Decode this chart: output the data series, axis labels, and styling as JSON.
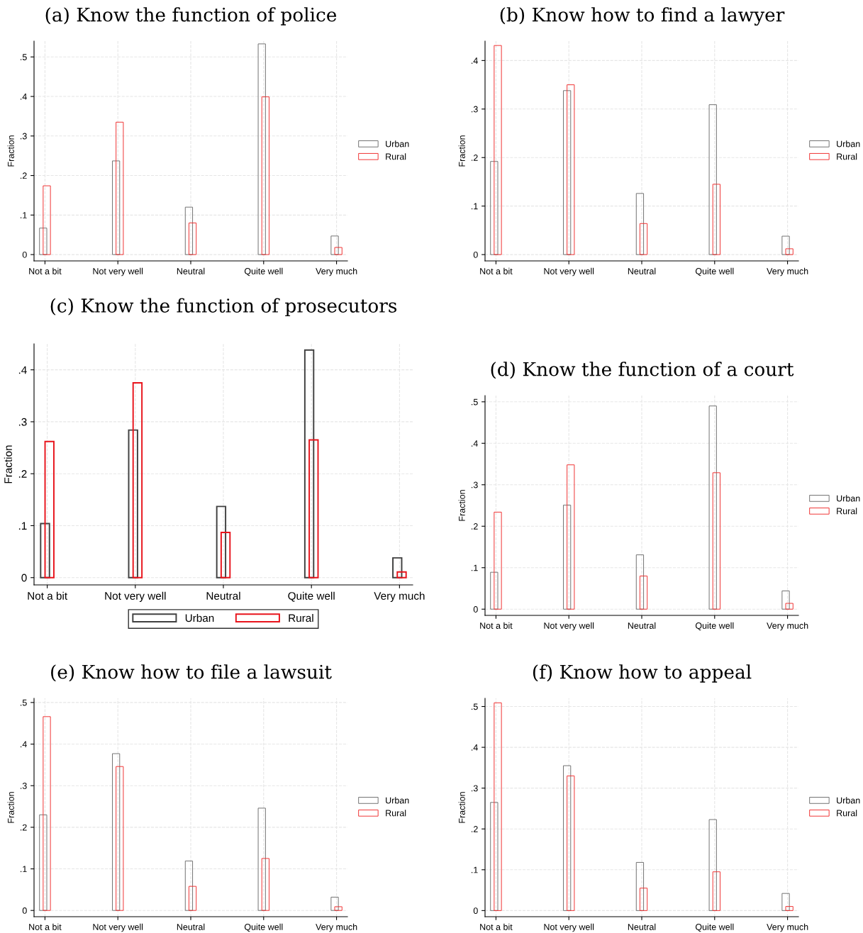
{
  "chart_data": [
    {
      "type": "bar",
      "title": "(a) Know the function of police",
      "ylabel": "Fraction",
      "categories": [
        "Not a bit",
        "Not very well",
        "Neutral",
        "Quite well",
        "Very much"
      ],
      "series": [
        {
          "name": "Urban",
          "color": "#707070",
          "values": [
            0.067,
            0.237,
            0.12,
            0.533,
            0.047
          ]
        },
        {
          "name": "Rural",
          "color": "#f03030",
          "values": [
            0.174,
            0.335,
            0.08,
            0.399,
            0.018
          ]
        }
      ],
      "ylim": [
        -0.016,
        0.54
      ],
      "yticks": [
        0,
        {
          "value": 0.1,
          "label": ".1"
        },
        {
          "value": 0.2,
          "label": ".2"
        },
        {
          "value": 0.3,
          "label": ".3"
        },
        {
          "value": 0.4,
          "label": ".4"
        },
        {
          "value": 0.5,
          "label": ".5"
        }
      ],
      "grid": true,
      "legend": "right"
    },
    {
      "type": "bar",
      "title": "(b) Know how to find a lawyer",
      "ylabel": "Fraction",
      "categories": [
        "Not a bit",
        "Not very well",
        "Neutral",
        "Quite well",
        "Very much"
      ],
      "series": [
        {
          "name": "Urban",
          "color": "#707070",
          "values": [
            0.192,
            0.338,
            0.126,
            0.309,
            0.038
          ]
        },
        {
          "name": "Rural",
          "color": "#f03030",
          "values": [
            0.431,
            0.35,
            0.064,
            0.145,
            0.012
          ]
        }
      ],
      "ylim": [
        -0.013,
        0.44
      ],
      "yticks": [
        0,
        {
          "value": 0.1,
          "label": ".1"
        },
        {
          "value": 0.2,
          "label": ".2"
        },
        {
          "value": 0.3,
          "label": ".3"
        },
        {
          "value": 0.4,
          "label": ".4"
        }
      ],
      "grid": true,
      "legend": "right"
    },
    {
      "type": "bar",
      "title": "(c) Know the function of prosecutors",
      "ylabel": "Fraction",
      "categories": [
        "Not a bit",
        "Not very well",
        "Neutral",
        "Quite well",
        "Very much"
      ],
      "series": [
        {
          "name": "Urban",
          "color": "#404040",
          "values": [
            0.104,
            0.284,
            0.137,
            0.438,
            0.038
          ]
        },
        {
          "name": "Rural",
          "color": "#e8141c",
          "values": [
            0.262,
            0.375,
            0.087,
            0.265,
            0.011
          ]
        }
      ],
      "ylim": [
        -0.014,
        0.45
      ],
      "yticks": [
        0,
        {
          "value": 0.1,
          "label": ".1"
        },
        {
          "value": 0.2,
          "label": ".2"
        },
        {
          "value": 0.3,
          "label": ".3"
        },
        {
          "value": 0.4,
          "label": ".4"
        }
      ],
      "grid": true,
      "legend": "bottom"
    },
    {
      "type": "bar",
      "title": "(d) Know the function of a court",
      "ylabel": "Fraction",
      "categories": [
        "Not a bit",
        "Not very well",
        "Neutral",
        "Quite well",
        "Very much"
      ],
      "series": [
        {
          "name": "Urban",
          "color": "#707070",
          "values": [
            0.089,
            0.251,
            0.131,
            0.49,
            0.044
          ]
        },
        {
          "name": "Rural",
          "color": "#f03030",
          "values": [
            0.234,
            0.348,
            0.08,
            0.329,
            0.014
          ]
        }
      ],
      "ylim": [
        -0.015,
        0.515
      ],
      "yticks": [
        0,
        {
          "value": 0.1,
          "label": ".1"
        },
        {
          "value": 0.2,
          "label": ".2"
        },
        {
          "value": 0.3,
          "label": ".3"
        },
        {
          "value": 0.4,
          "label": ".4"
        },
        {
          "value": 0.5,
          "label": ".5"
        }
      ],
      "grid": true,
      "legend": "right"
    },
    {
      "type": "bar",
      "title": "(e) Know how to file a lawsuit",
      "ylabel": "Fraction",
      "categories": [
        "Not a bit",
        "Not very well",
        "Neutral",
        "Quite well",
        "Very much"
      ],
      "series": [
        {
          "name": "Urban",
          "color": "#707070",
          "values": [
            0.23,
            0.377,
            0.119,
            0.246,
            0.032
          ]
        },
        {
          "name": "Rural",
          "color": "#f03030",
          "values": [
            0.466,
            0.346,
            0.058,
            0.125,
            0.009
          ]
        }
      ],
      "ylim": [
        -0.015,
        0.51
      ],
      "yticks": [
        0,
        {
          "value": 0.1,
          "label": ".1"
        },
        {
          "value": 0.2,
          "label": ".2"
        },
        {
          "value": 0.3,
          "label": ".3"
        },
        {
          "value": 0.4,
          "label": ".4"
        },
        {
          "value": 0.5,
          "label": ".5"
        }
      ],
      "grid": true,
      "legend": "right"
    },
    {
      "type": "bar",
      "title": "(f) Know how to appeal",
      "ylabel": "Fraction",
      "categories": [
        "Not a bit",
        "Not very well",
        "Neutral",
        "Quite well",
        "Very much"
      ],
      "series": [
        {
          "name": "Urban",
          "color": "#707070",
          "values": [
            0.265,
            0.355,
            0.118,
            0.223,
            0.042
          ]
        },
        {
          "name": "Rural",
          "color": "#f03030",
          "values": [
            0.509,
            0.33,
            0.055,
            0.095,
            0.01
          ]
        }
      ],
      "ylim": [
        -0.015,
        0.52
      ],
      "yticks": [
        0,
        {
          "value": 0.1,
          "label": ".1"
        },
        {
          "value": 0.2,
          "label": ".2"
        },
        {
          "value": 0.3,
          "label": ".3"
        },
        {
          "value": 0.4,
          "label": ".4"
        },
        {
          "value": 0.5,
          "label": ".5"
        }
      ],
      "grid": true,
      "legend": "right"
    }
  ]
}
